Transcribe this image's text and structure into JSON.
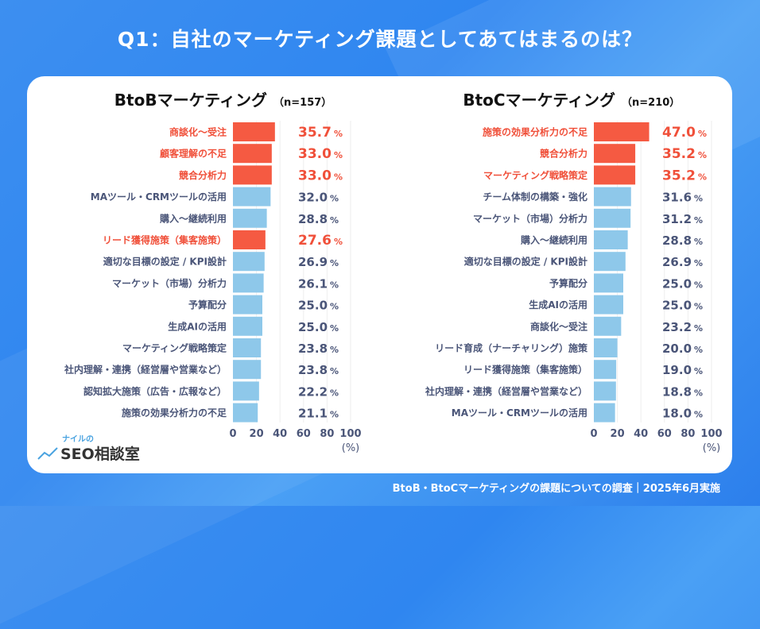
{
  "title": "Q1：自社のマーケティング課題としてあてはまるのは？",
  "footer": "BtoB・BtoCマーケティングの課題についての調査｜2025年6月実施",
  "logo": {
    "small": "ナイルの",
    "main": "SEO相談室"
  },
  "colors": {
    "highlight_bar": "#f55a42",
    "normal_bar": "#8ec8ea",
    "highlight_text": "#f0503a",
    "normal_text": "#4a5578"
  },
  "chart_data": [
    {
      "type": "bar",
      "orientation": "horizontal",
      "title": "BtoBマーケティング",
      "n_label": "（n=157）",
      "xlim": [
        0,
        100
      ],
      "xticks": [
        "0",
        "20",
        "40",
        "60",
        "80",
        "100"
      ],
      "unit_label": "(%)",
      "value_suffix": "%",
      "grid": true,
      "categories": [
        "商談化〜受注",
        "顧客理解の不足",
        "競合分析力",
        "MAツール・CRMツールの活用",
        "購入〜継続利用",
        "リード獲得施策（集客施策）",
        "適切な目標の設定 / KPI設計",
        "マーケット（市場）分析力",
        "予算配分",
        "生成AIの活用",
        "マーケティング戦略策定",
        "社内理解・連携（経営層や営業など）",
        "認知拡大施策（広告・広報など）",
        "施策の効果分析力の不足"
      ],
      "values": [
        35.7,
        33.0,
        33.0,
        32.0,
        28.8,
        27.6,
        26.9,
        26.1,
        25.0,
        25.0,
        23.8,
        23.8,
        22.2,
        21.1
      ],
      "highlighted": [
        true,
        true,
        true,
        false,
        false,
        true,
        false,
        false,
        false,
        false,
        false,
        false,
        false,
        false
      ]
    },
    {
      "type": "bar",
      "orientation": "horizontal",
      "title": "BtoCマーケティング",
      "n_label": "（n=210）",
      "xlim": [
        0,
        100
      ],
      "xticks": [
        "0",
        "20",
        "40",
        "60",
        "80",
        "100"
      ],
      "unit_label": "(%)",
      "value_suffix": "%",
      "grid": true,
      "categories": [
        "施策の効果分析力の不足",
        "競合分析力",
        "マーケティング戦略策定",
        "チーム体制の構築・強化",
        "マーケット（市場）分析力",
        "購入〜継続利用",
        "適切な目標の設定 / KPI設計",
        "予算配分",
        "生成AIの活用",
        "商談化〜受注",
        "リード育成（ナーチャリング）施策",
        "リード獲得施策（集客施策）",
        "社内理解・連携（経営層や営業など）",
        "MAツール・CRMツールの活用"
      ],
      "values": [
        47.0,
        35.2,
        35.2,
        31.6,
        31.2,
        28.8,
        26.9,
        25.0,
        25.0,
        23.2,
        20.0,
        19.0,
        18.8,
        18.0
      ],
      "highlighted": [
        true,
        true,
        true,
        false,
        false,
        false,
        false,
        false,
        false,
        false,
        false,
        false,
        false,
        false
      ]
    }
  ]
}
